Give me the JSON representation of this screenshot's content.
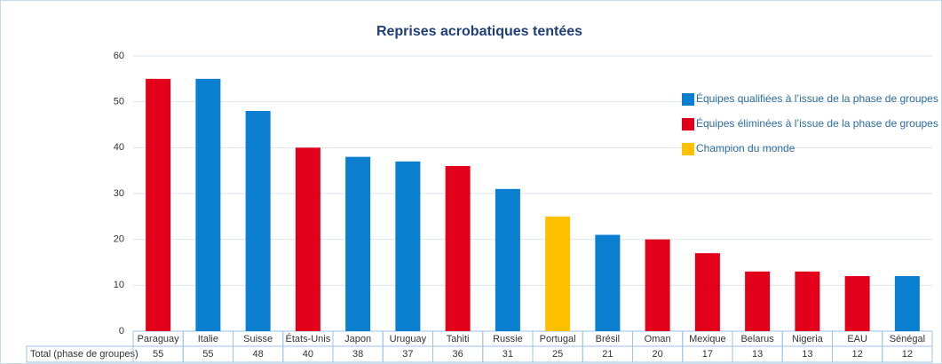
{
  "chart_data": {
    "type": "bar",
    "title": "Reprises acrobatiques tentées",
    "categories": [
      "Paraguay",
      "Italie",
      "Suisse",
      "États-Unis",
      "Japon",
      "Uruguay",
      "Tahiti",
      "Russie",
      "Portugal",
      "Brésil",
      "Oman",
      "Mexique",
      "Belarus",
      "Nigeria",
      "EAU",
      "Sénégal"
    ],
    "series": [
      {
        "name": "Équipes qualifiées à l’issue de la phase de groupes",
        "color": "#0a7fcf",
        "values": [
          null,
          55,
          48,
          null,
          38,
          37,
          null,
          31,
          null,
          21,
          null,
          null,
          null,
          null,
          null,
          12
        ]
      },
      {
        "name": "Équipes éliminées à l’issue de la phase de groupes",
        "color": "#e3001b",
        "values": [
          55,
          null,
          null,
          40,
          null,
          null,
          36,
          null,
          null,
          null,
          20,
          17,
          13,
          13,
          12,
          null
        ]
      },
      {
        "name": "Champion du monde",
        "color": "#ffc000",
        "values": [
          null,
          null,
          null,
          null,
          null,
          null,
          null,
          null,
          25,
          null,
          null,
          null,
          null,
          null,
          null,
          null
        ]
      }
    ],
    "table_label": "Total (phase de groupes)",
    "ylim": [
      0,
      60
    ],
    "yticks": [
      0,
      10,
      20,
      30,
      40,
      50,
      60
    ],
    "grid": true,
    "legend": "right"
  }
}
